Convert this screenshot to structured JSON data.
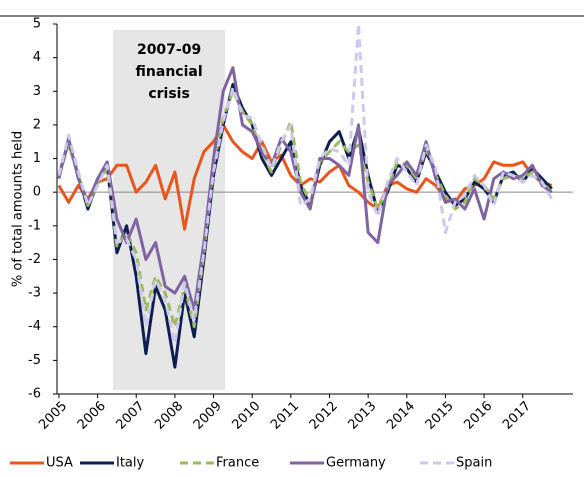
{
  "chart_data": {
    "type": "line",
    "y_label": "% of total amounts held",
    "annotation": "2007-09 financial crisis",
    "shaded_span": [
      2006.4,
      2009.3
    ],
    "x": [
      2005.0,
      2005.25,
      2005.5,
      2005.75,
      2006.0,
      2006.25,
      2006.5,
      2006.75,
      2007.0,
      2007.25,
      2007.5,
      2007.75,
      2008.0,
      2008.25,
      2008.5,
      2008.75,
      2009.0,
      2009.25,
      2009.5,
      2009.75,
      2010.0,
      2010.25,
      2010.5,
      2010.75,
      2011.0,
      2011.25,
      2011.5,
      2011.75,
      2012.0,
      2012.25,
      2012.5,
      2012.75,
      2013.0,
      2013.25,
      2013.5,
      2013.75,
      2014.0,
      2014.25,
      2014.5,
      2014.75,
      2015.0,
      2015.25,
      2015.5,
      2015.75,
      2016.0,
      2016.25,
      2016.5,
      2016.75,
      2017.0,
      2017.25,
      2017.5,
      2017.75
    ],
    "series": [
      {
        "name": "USA",
        "color": "#e8561c",
        "dash": false,
        "values": [
          0.2,
          -0.3,
          0.2,
          -0.2,
          0.3,
          0.4,
          0.8,
          0.8,
          0.0,
          0.3,
          0.8,
          -0.2,
          0.6,
          -1.1,
          0.4,
          1.2,
          1.5,
          2.0,
          1.5,
          1.2,
          1.0,
          1.5,
          0.9,
          1.1,
          0.5,
          0.2,
          0.4,
          0.3,
          0.6,
          0.8,
          0.2,
          0.0,
          -0.3,
          -0.5,
          0.2,
          0.3,
          0.1,
          0.0,
          0.4,
          0.2,
          -0.2,
          -0.3,
          0.1,
          0.2,
          0.4,
          0.9,
          0.8,
          0.8,
          0.9,
          0.5,
          0.3,
          0.2
        ]
      },
      {
        "name": "Italy",
        "color": "#0d1f4f",
        "dash": false,
        "values": [
          0.5,
          1.5,
          0.5,
          -0.5,
          0.3,
          0.8,
          -1.8,
          -1.0,
          -2.5,
          -4.8,
          -2.8,
          -3.5,
          -5.2,
          -3.0,
          -4.3,
          -2.0,
          0.5,
          2.0,
          3.2,
          2.5,
          2.0,
          1.0,
          0.5,
          1.0,
          1.5,
          0.2,
          -0.4,
          0.8,
          1.5,
          1.8,
          1.0,
          1.9,
          0.5,
          -0.6,
          0.0,
          0.8,
          0.7,
          0.3,
          1.2,
          0.6,
          0.0,
          -0.4,
          -0.2,
          0.3,
          0.1,
          -0.3,
          0.5,
          0.6,
          0.3,
          0.7,
          0.4,
          0.1
        ]
      },
      {
        "name": "France",
        "color": "#9bbb59",
        "dash": true,
        "values": [
          0.5,
          1.4,
          0.5,
          -0.4,
          0.3,
          0.7,
          -1.6,
          -1.2,
          -1.8,
          -3.5,
          -2.5,
          -3.0,
          -4.0,
          -2.8,
          -4.0,
          -1.8,
          0.8,
          2.2,
          3.0,
          2.4,
          2.0,
          1.2,
          0.6,
          1.4,
          2.1,
          0.3,
          -0.3,
          0.9,
          1.2,
          1.5,
          1.2,
          1.4,
          0.3,
          -0.5,
          0.1,
          0.9,
          0.8,
          0.4,
          1.3,
          0.5,
          -0.1,
          -0.5,
          -0.3,
          0.4,
          0.2,
          -0.2,
          0.4,
          0.5,
          0.4,
          0.6,
          0.3,
          0.0
        ]
      },
      {
        "name": "Germany",
        "color": "#8064a2",
        "dash": false,
        "values": [
          0.4,
          1.6,
          0.4,
          -0.3,
          0.4,
          0.9,
          -0.8,
          -1.5,
          -0.8,
          -2.0,
          -1.5,
          -2.8,
          -3.0,
          -2.5,
          -3.5,
          -1.5,
          1.0,
          3.0,
          3.7,
          2.0,
          1.8,
          1.2,
          0.8,
          1.6,
          1.2,
          0.0,
          -0.5,
          1.0,
          1.0,
          0.8,
          0.5,
          2.0,
          -1.2,
          -1.5,
          0.2,
          0.5,
          0.9,
          0.5,
          1.5,
          0.4,
          -0.3,
          -0.2,
          -0.5,
          0.1,
          -0.8,
          0.4,
          0.6,
          0.4,
          0.5,
          0.8,
          0.2,
          0.0
        ]
      },
      {
        "name": "Spain",
        "color": "#ccc8ee",
        "dash": true,
        "values": [
          0.5,
          1.7,
          0.6,
          -0.4,
          0.2,
          0.8,
          -1.5,
          -1.4,
          -2.0,
          -4.0,
          -2.6,
          -3.2,
          -4.5,
          -2.7,
          -3.8,
          -1.8,
          0.6,
          2.1,
          3.1,
          2.3,
          2.2,
          1.4,
          0.7,
          1.5,
          2.0,
          -0.4,
          -0.2,
          1.0,
          1.3,
          1.2,
          0.8,
          5.0,
          0.0,
          -0.7,
          0.3,
          1.0,
          0.6,
          0.2,
          1.4,
          0.7,
          -1.2,
          -0.3,
          -0.1,
          0.5,
          0.2,
          -0.4,
          0.6,
          0.5,
          0.3,
          0.5,
          0.3,
          -0.2
        ]
      }
    ],
    "xlim": [
      2004.95,
      2018.3
    ],
    "xticks": [
      2005,
      2006,
      2007,
      2008,
      2009,
      2010,
      2011,
      2012,
      2013,
      2014,
      2015,
      2016,
      2017
    ],
    "ylim": [
      -6,
      5
    ],
    "yticks": [
      -6,
      -5,
      -4,
      -3,
      -2,
      -1,
      0,
      1,
      2,
      3,
      4,
      5
    ],
    "legend": "bottom"
  }
}
